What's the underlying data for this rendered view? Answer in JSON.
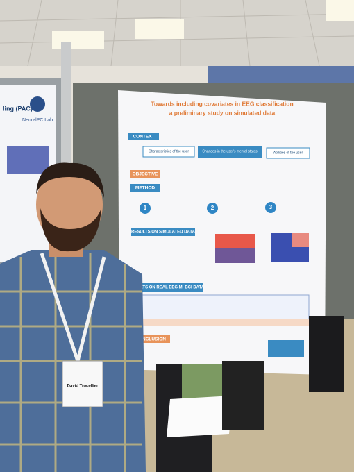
{
  "left_poster": {
    "title": "ling (PAC)",
    "lab": "NeuralPC Lab"
  },
  "poster": {
    "title": "Towards including covariates in EEG classification",
    "subtitle": "a preliminary study on simulated data",
    "context": {
      "label": "CONTEXT",
      "boxes": [
        "Characteristics of the user",
        "Changes in the user's mental states",
        "Abilities of the user"
      ]
    },
    "objective": {
      "label": "OBJECTIVE"
    },
    "method": {
      "label": "METHOD",
      "steps": [
        "1",
        "2",
        "3"
      ]
    },
    "results_simulated": {
      "label": "RESULTS ON SIMULATED DATA"
    },
    "results_real": {
      "label": "ULTS ON REAL EEG MI-BCI DATA"
    },
    "conclusion": {
      "label": "NCLUSION"
    }
  },
  "badge": {
    "name": "David Trocellier"
  }
}
